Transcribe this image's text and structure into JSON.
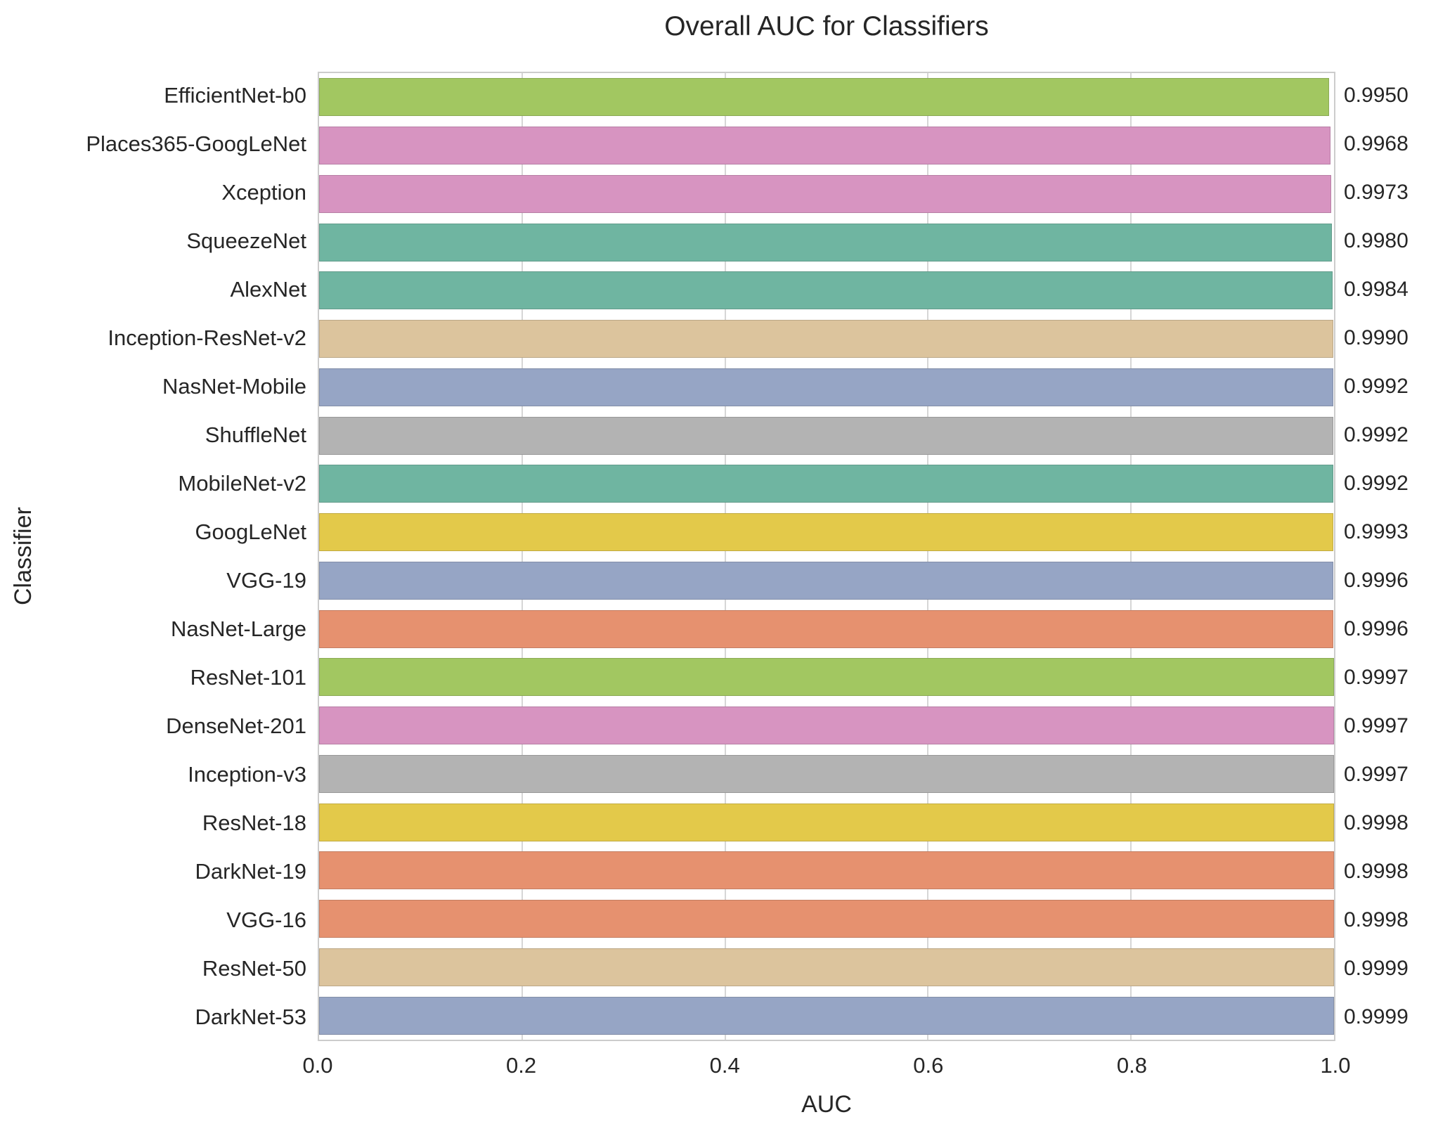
{
  "palette": {
    "green": "#a2c761",
    "pink": "#d794c1",
    "teal": "#6fb5a1",
    "tan": "#dcc49d",
    "blue": "#96a5c5",
    "gray": "#b3b3b3",
    "yellow": "#e3c94a",
    "orange": "#e6916f",
    "grid_color": "#d6d6d6",
    "axis_border": "#cccccc",
    "text_color": "#262626"
  },
  "chart_data": {
    "type": "bar",
    "orientation": "horizontal",
    "title": "Overall AUC for Classifiers",
    "xlabel": "AUC",
    "ylabel": "Classifier",
    "xlim": [
      0.0,
      1.0
    ],
    "x_ticks": [
      "0.0",
      "0.2",
      "0.4",
      "0.6",
      "0.8",
      "1.0"
    ],
    "grid": true,
    "legend": false,
    "categories": [
      "EfficientNet-b0",
      "Places365-GoogLeNet",
      "Xception",
      "SqueezeNet",
      "AlexNet",
      "Inception-ResNet-v2",
      "NasNet-Mobile",
      "ShuffleNet",
      "MobileNet-v2",
      "GoogLeNet",
      "VGG-19",
      "NasNet-Large",
      "ResNet-101",
      "DenseNet-201",
      "Inception-v3",
      "ResNet-18",
      "DarkNet-19",
      "VGG-16",
      "ResNet-50",
      "DarkNet-53"
    ],
    "values": [
      0.995,
      0.9968,
      0.9973,
      0.998,
      0.9984,
      0.999,
      0.9992,
      0.9992,
      0.9992,
      0.9993,
      0.9996,
      0.9996,
      0.9997,
      0.9997,
      0.9997,
      0.9998,
      0.9998,
      0.9998,
      0.9999,
      0.9999
    ],
    "value_labels": [
      "0.9950",
      "0.9968",
      "0.9973",
      "0.9980",
      "0.9984",
      "0.9990",
      "0.9992",
      "0.9992",
      "0.9992",
      "0.9993",
      "0.9996",
      "0.9996",
      "0.9997",
      "0.9997",
      "0.9997",
      "0.9998",
      "0.9998",
      "0.9998",
      "0.9999",
      "0.9999"
    ],
    "bar_colors": [
      "#a2c761",
      "#d794c1",
      "#d794c1",
      "#6fb5a1",
      "#6fb5a1",
      "#dcc49d",
      "#96a5c5",
      "#b3b3b3",
      "#6fb5a1",
      "#e3c94a",
      "#96a5c5",
      "#e6916f",
      "#a2c761",
      "#d794c1",
      "#b3b3b3",
      "#e3c94a",
      "#e6916f",
      "#e6916f",
      "#dcc49d",
      "#96a5c5"
    ]
  }
}
